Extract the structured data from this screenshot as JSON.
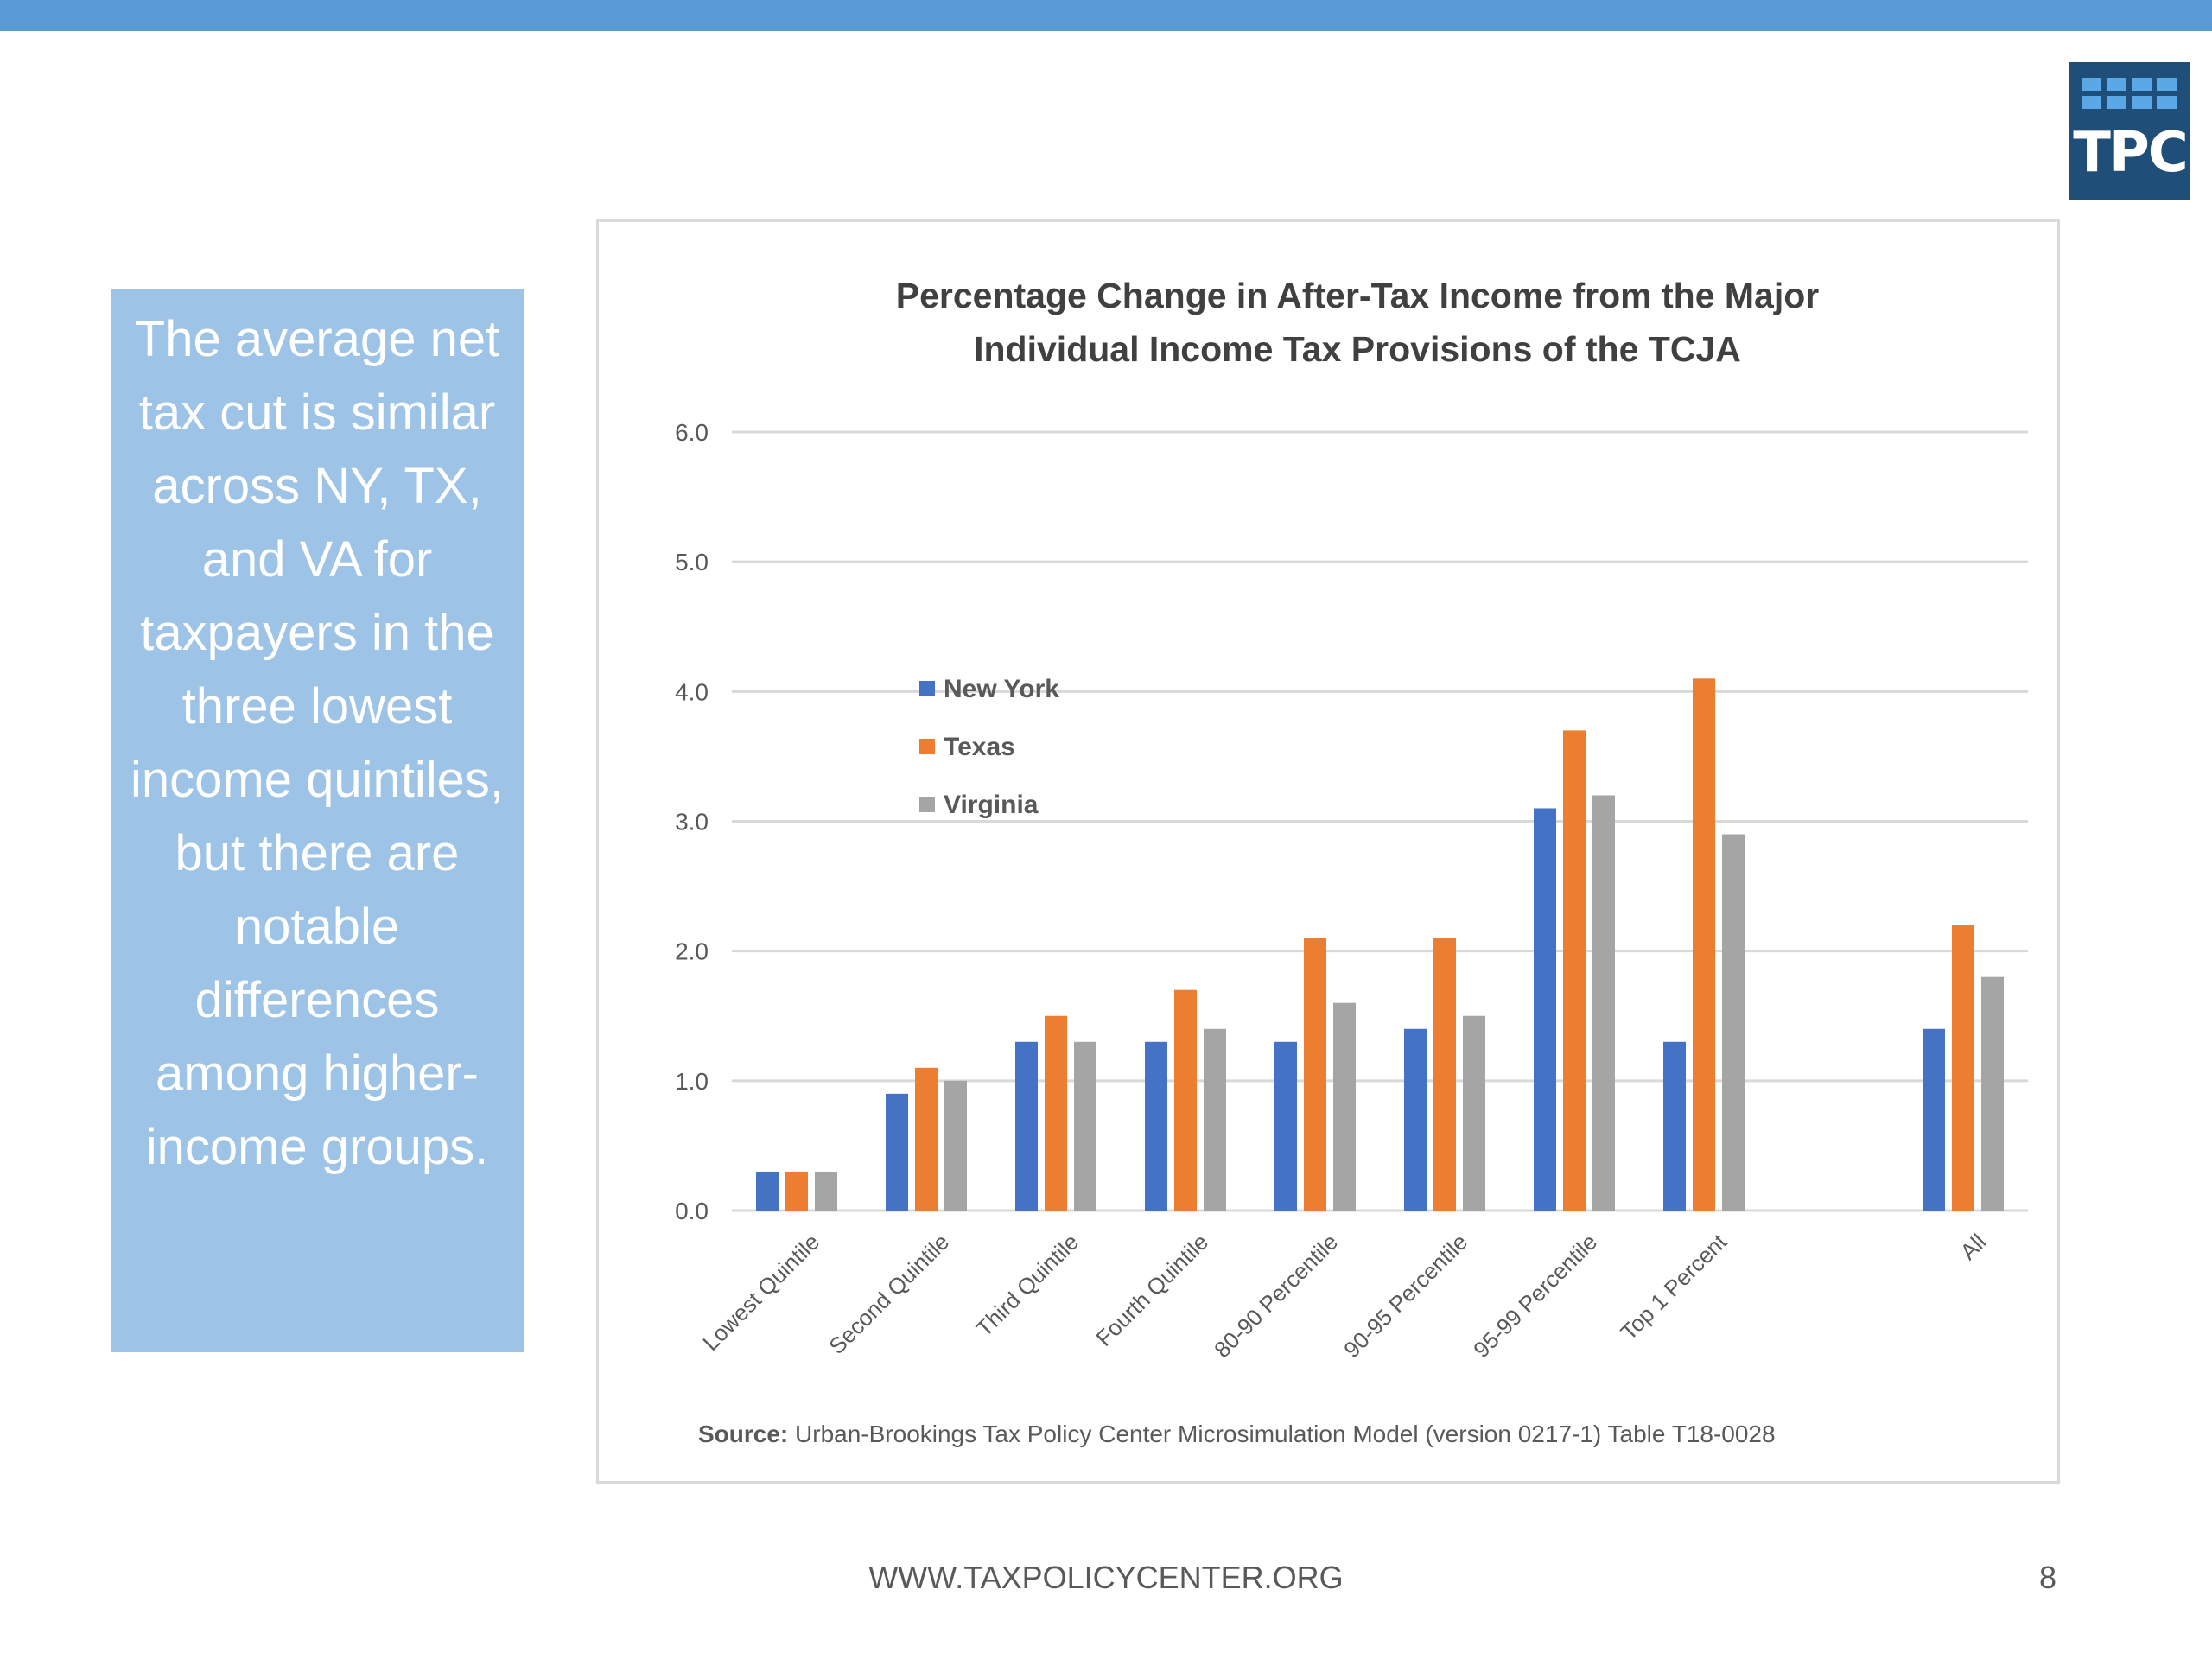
{
  "callout": {
    "text": "The average net tax cut is similar across NY, TX, and VA for taxpayers in the three lowest income quintiles, but there are notable differences among higher-income groups."
  },
  "logo": {
    "text": "TPC"
  },
  "footer": {
    "url": "WWW.TAXPOLICYCENTER.ORG",
    "page": "8"
  },
  "colors": {
    "accent": "#5b9bd5",
    "callout_bg": "#9dc3e6",
    "logo_bg": "#1f4e79"
  },
  "chart_data": {
    "type": "bar",
    "title_lines": [
      "Percentage Change in After-Tax Income from the Major",
      "Individual Income Tax Provisions of the TCJA"
    ],
    "categories": [
      "Lowest Quintile",
      "Second Quintile",
      "Third Quintile",
      "Fourth Quintile",
      "80-90 Percentile",
      "90-95 Percentile",
      "95-99 Percentile",
      "Top 1 Percent",
      "",
      "All"
    ],
    "series": [
      {
        "name": "New York",
        "color": "#4472c4",
        "values": [
          0.3,
          0.9,
          1.3,
          1.3,
          1.3,
          1.4,
          3.1,
          1.3,
          null,
          1.4
        ]
      },
      {
        "name": "Texas",
        "color": "#ed7d31",
        "values": [
          0.3,
          1.1,
          1.5,
          1.7,
          2.1,
          2.1,
          3.7,
          4.1,
          null,
          2.2
        ]
      },
      {
        "name": "Virginia",
        "color": "#a5a5a5",
        "values": [
          0.3,
          1.0,
          1.3,
          1.4,
          1.6,
          1.5,
          3.2,
          2.9,
          null,
          1.8
        ]
      }
    ],
    "ylim": [
      0,
      6
    ],
    "yticks": [
      "0.0",
      "1.0",
      "2.0",
      "3.0",
      "4.0",
      "5.0",
      "6.0"
    ],
    "grid": true,
    "legend_position": "top-left",
    "source_label": "Source:",
    "source_text": " Urban-Brookings Tax Policy Center  Microsimulation Model (version 0217-1) Table T18-0028"
  }
}
